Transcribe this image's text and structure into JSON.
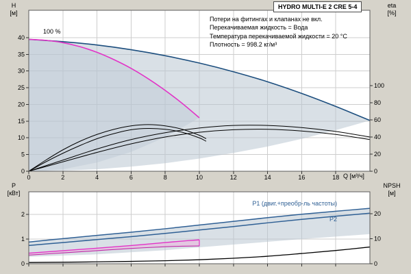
{
  "header": {
    "model": "HYDRO MULTI-E 2 CRE 5-4"
  },
  "annotations": {
    "info_lines": [
      "Потери на фитингах и клапанах не вкл.",
      "Перекачиваемая жидкость = Вода",
      "Температура перекачиваемой жидкости = 20 °C",
      "Плотность = 998.2 кг/м³"
    ],
    "speed_label": "100 %",
    "p1_label": "P1 (двиг.+преобр-ль частоты)",
    "p2_label": "P2"
  },
  "axes": {
    "h": [
      "H",
      "[м]"
    ],
    "eta": [
      "eta",
      "[%]"
    ],
    "p": [
      "P",
      "[кВт]"
    ],
    "npsh": [
      "NPSH",
      "[м]"
    ],
    "q_label": "Q [м³/ч]"
  },
  "colors": {
    "background": "#d6d3ca",
    "plot": "#ffffff",
    "grid": "#cdcdcd",
    "frame": "#5a5a5a",
    "envelope": "#b9c6d2",
    "curve_max": "#1c4e7e",
    "curve_100": "#e233c7",
    "curve_power": "#2e5f94",
    "curve_black": "#000000",
    "pink_band": "#eab6dd"
  },
  "chart_data": [
    {
      "type": "line",
      "title": "HYDRO MULTI-E 2 CRE 5-4",
      "xlabel": "Q [м³/ч]",
      "ylabel_left": "H [м]",
      "ylabel_right": "eta [%]",
      "xlim": [
        0,
        20
      ],
      "ylim_left": [
        0,
        48.2
      ],
      "ylim_right": [
        0,
        188
      ],
      "x_ticks": [
        0,
        2,
        4,
        6,
        8,
        10,
        12,
        14,
        16,
        18
      ],
      "x_tick_labels": true,
      "y_ticks_left": [
        0,
        5,
        10,
        15,
        20,
        25,
        30,
        35,
        40
      ],
      "y_ticks_right": [
        0,
        20,
        40,
        60,
        80,
        100
      ],
      "regions": [
        {
          "name": "operating-envelope-2-pumps",
          "axis": "left",
          "color": "#b9c6d2",
          "opacity": 0.55,
          "points": [
            [
              0,
              39.5
            ],
            [
              2,
              38.8
            ],
            [
              4,
              37.8
            ],
            [
              6,
              36.4
            ],
            [
              8,
              34.6
            ],
            [
              10,
              32.4
            ],
            [
              12,
              29.8
            ],
            [
              14,
              26.8
            ],
            [
              16,
              23.3
            ],
            [
              18,
              19.4
            ],
            [
              20,
              15.2
            ],
            [
              18,
              12.3
            ],
            [
              16,
              9.7
            ],
            [
              14,
              7.4
            ],
            [
              12,
              5.5
            ],
            [
              10,
              3.8
            ],
            [
              8,
              2.4
            ],
            [
              6,
              1.4
            ],
            [
              4,
              0.6
            ],
            [
              2,
              0.2
            ],
            [
              0,
              0
            ]
          ]
        },
        {
          "name": "operating-envelope-1-pump",
          "axis": "left",
          "color": "#b9c6d2",
          "opacity": 0.4,
          "points": [
            [
              0,
              39.5
            ],
            [
              2,
              38.5
            ],
            [
              4,
              35.6
            ],
            [
              6,
              30.8
            ],
            [
              8,
              24.2
            ],
            [
              10,
              16
            ],
            [
              8,
              10.2
            ],
            [
              6,
              5.8
            ],
            [
              4,
              2.6
            ],
            [
              2,
              0.6
            ],
            [
              0,
              0
            ]
          ]
        }
      ],
      "series": [
        {
          "name": "qh-max-speed-2-pumps",
          "axis": "left",
          "color": "#1c4e7e",
          "width": 1.6,
          "points": [
            [
              0,
              39.5
            ],
            [
              2,
              38.8
            ],
            [
              4,
              37.8
            ],
            [
              6,
              36.4
            ],
            [
              8,
              34.6
            ],
            [
              10,
              32.4
            ],
            [
              12,
              29.8
            ],
            [
              14,
              26.8
            ],
            [
              16,
              23.3
            ],
            [
              18,
              19.4
            ],
            [
              20,
              15.2
            ]
          ]
        },
        {
          "name": "qh-100pct-1-pump",
          "axis": "left",
          "color": "#e233c7",
          "width": 1.6,
          "points": [
            [
              0,
              39.5
            ],
            [
              1,
              39.2
            ],
            [
              2,
              38.5
            ],
            [
              3,
              37.3
            ],
            [
              4,
              35.6
            ],
            [
              5,
              33.4
            ],
            [
              6,
              30.8
            ],
            [
              7,
              27.7
            ],
            [
              8,
              24.2
            ],
            [
              9,
              20.3
            ],
            [
              10,
              16
            ]
          ]
        },
        {
          "name": "eta-curve-1",
          "axis": "right",
          "color": "#000000",
          "width": 1,
          "points": [
            [
              0,
              0
            ],
            [
              1,
              13
            ],
            [
              2,
              25
            ],
            [
              3,
              35
            ],
            [
              4,
              43
            ],
            [
              5,
              49
            ],
            [
              6,
              53
            ],
            [
              7,
              54.5
            ],
            [
              8,
              53
            ],
            [
              9,
              49
            ],
            [
              10,
              42
            ],
            [
              10.4,
              38
            ]
          ]
        },
        {
          "name": "eta-curve-2",
          "axis": "right",
          "color": "#000000",
          "width": 1,
          "points": [
            [
              0,
              0
            ],
            [
              1,
              11
            ],
            [
              2,
              21
            ],
            [
              3,
              30
            ],
            [
              4,
              38
            ],
            [
              5,
              44
            ],
            [
              6,
              48.5
            ],
            [
              7,
              50
            ],
            [
              8,
              49
            ],
            [
              9,
              45.5
            ],
            [
              10,
              39
            ],
            [
              10.4,
              35
            ]
          ]
        },
        {
          "name": "eta-curve-3",
          "axis": "right",
          "color": "#000000",
          "width": 1,
          "points": [
            [
              0,
              0
            ],
            [
              2,
              13
            ],
            [
              4,
              26
            ],
            [
              6,
              37
            ],
            [
              8,
              45
            ],
            [
              10,
              50.5
            ],
            [
              12,
              53.5
            ],
            [
              14,
              53.5
            ],
            [
              16,
              51
            ],
            [
              18,
              46.5
            ],
            [
              20,
              40
            ]
          ]
        },
        {
          "name": "eta-curve-4",
          "axis": "right",
          "color": "#000000",
          "width": 1,
          "points": [
            [
              0,
              0
            ],
            [
              2,
              11
            ],
            [
              4,
              22
            ],
            [
              6,
              32
            ],
            [
              8,
              40
            ],
            [
              10,
              45.5
            ],
            [
              12,
              48.5
            ],
            [
              14,
              49
            ],
            [
              16,
              47
            ],
            [
              18,
              43
            ],
            [
              20,
              37
            ]
          ]
        }
      ]
    },
    {
      "type": "line",
      "title": "",
      "xlabel": "",
      "ylabel_left": "P [кВт]",
      "ylabel_right": "NPSH [м]",
      "xlim": [
        0,
        20
      ],
      "ylim_left": [
        0,
        2.92
      ],
      "ylim_right": [
        0,
        28.8
      ],
      "x_ticks": [
        0,
        2,
        4,
        6,
        8,
        10,
        12,
        14,
        16,
        18
      ],
      "x_tick_labels": false,
      "y_ticks_left": [
        0,
        1,
        2
      ],
      "y_ticks_right": [
        0,
        10,
        20
      ],
      "regions": [
        {
          "name": "power-envelope",
          "axis": "left",
          "color": "#b9c6d2",
          "opacity": 0.55,
          "points": [
            [
              0,
              0.88
            ],
            [
              2,
              1.02
            ],
            [
              4,
              1.15
            ],
            [
              6,
              1.28
            ],
            [
              8,
              1.42
            ],
            [
              10,
              1.57
            ],
            [
              12,
              1.72
            ],
            [
              14,
              1.87
            ],
            [
              16,
              2.01
            ],
            [
              18,
              2.13
            ],
            [
              20,
              2.25
            ],
            [
              20,
              1.2
            ],
            [
              16,
              1.0
            ],
            [
              12,
              0.78
            ],
            [
              8,
              0.55
            ],
            [
              4,
              0.38
            ],
            [
              0,
              0.28
            ]
          ]
        },
        {
          "name": "power-envelope-100pct",
          "axis": "left",
          "color": "#eab6dd",
          "opacity": 0.6,
          "points": [
            [
              0,
              0.43
            ],
            [
              2,
              0.53
            ],
            [
              4,
              0.63
            ],
            [
              6,
              0.74
            ],
            [
              8,
              0.86
            ],
            [
              10,
              0.97
            ],
            [
              10,
              0.72
            ],
            [
              8,
              0.69
            ],
            [
              6,
              0.62
            ],
            [
              4,
              0.53
            ],
            [
              2,
              0.44
            ],
            [
              0,
              0.35
            ]
          ]
        }
      ],
      "series": [
        {
          "name": "p1-curve",
          "axis": "left",
          "color": "#2e5f94",
          "width": 1.5,
          "points": [
            [
              0,
              0.88
            ],
            [
              2,
              1.02
            ],
            [
              4,
              1.15
            ],
            [
              6,
              1.28
            ],
            [
              8,
              1.42
            ],
            [
              10,
              1.57
            ],
            [
              12,
              1.72
            ],
            [
              14,
              1.87
            ],
            [
              16,
              2.01
            ],
            [
              18,
              2.13
            ],
            [
              20,
              2.25
            ]
          ]
        },
        {
          "name": "p2-curve",
          "axis": "left",
          "color": "#2e5f94",
          "width": 1.5,
          "points": [
            [
              0,
              0.74
            ],
            [
              2,
              0.86
            ],
            [
              4,
              0.98
            ],
            [
              6,
              1.1
            ],
            [
              8,
              1.23
            ],
            [
              10,
              1.37
            ],
            [
              12,
              1.51
            ],
            [
              14,
              1.66
            ],
            [
              16,
              1.8
            ],
            [
              18,
              1.93
            ],
            [
              20,
              2.05
            ]
          ]
        },
        {
          "name": "p1-100pct-curve",
          "axis": "left",
          "color": "#e233c7",
          "width": 1.4,
          "points": [
            [
              0,
              0.43
            ],
            [
              2,
              0.53
            ],
            [
              4,
              0.63
            ],
            [
              6,
              0.74
            ],
            [
              8,
              0.86
            ],
            [
              9,
              0.92
            ],
            [
              10,
              0.97
            ]
          ]
        },
        {
          "name": "p2-100pct-curve",
          "axis": "left",
          "color": "#c02ba8",
          "width": 1.1,
          "points": [
            [
              0,
              0.35
            ],
            [
              2,
              0.44
            ],
            [
              4,
              0.53
            ],
            [
              6,
              0.62
            ],
            [
              8,
              0.69
            ],
            [
              9,
              0.71
            ],
            [
              10,
              0.72
            ]
          ]
        },
        {
          "name": "p-100pct-end-cap",
          "axis": "left",
          "color": "#e233c7",
          "width": 1.2,
          "points": [
            [
              10,
              0.97
            ],
            [
              10,
              0.72
            ]
          ]
        },
        {
          "name": "npsh-curve",
          "axis": "right",
          "color": "#000000",
          "width": 1.3,
          "points": [
            [
              0,
              0.5
            ],
            [
              2,
              0.6
            ],
            [
              4,
              0.75
            ],
            [
              6,
              0.95
            ],
            [
              8,
              1.2
            ],
            [
              10,
              1.6
            ],
            [
              12,
              2.2
            ],
            [
              14,
              3.0
            ],
            [
              16,
              4.1
            ],
            [
              18,
              5.3
            ],
            [
              20,
              6.7
            ]
          ]
        }
      ]
    }
  ]
}
